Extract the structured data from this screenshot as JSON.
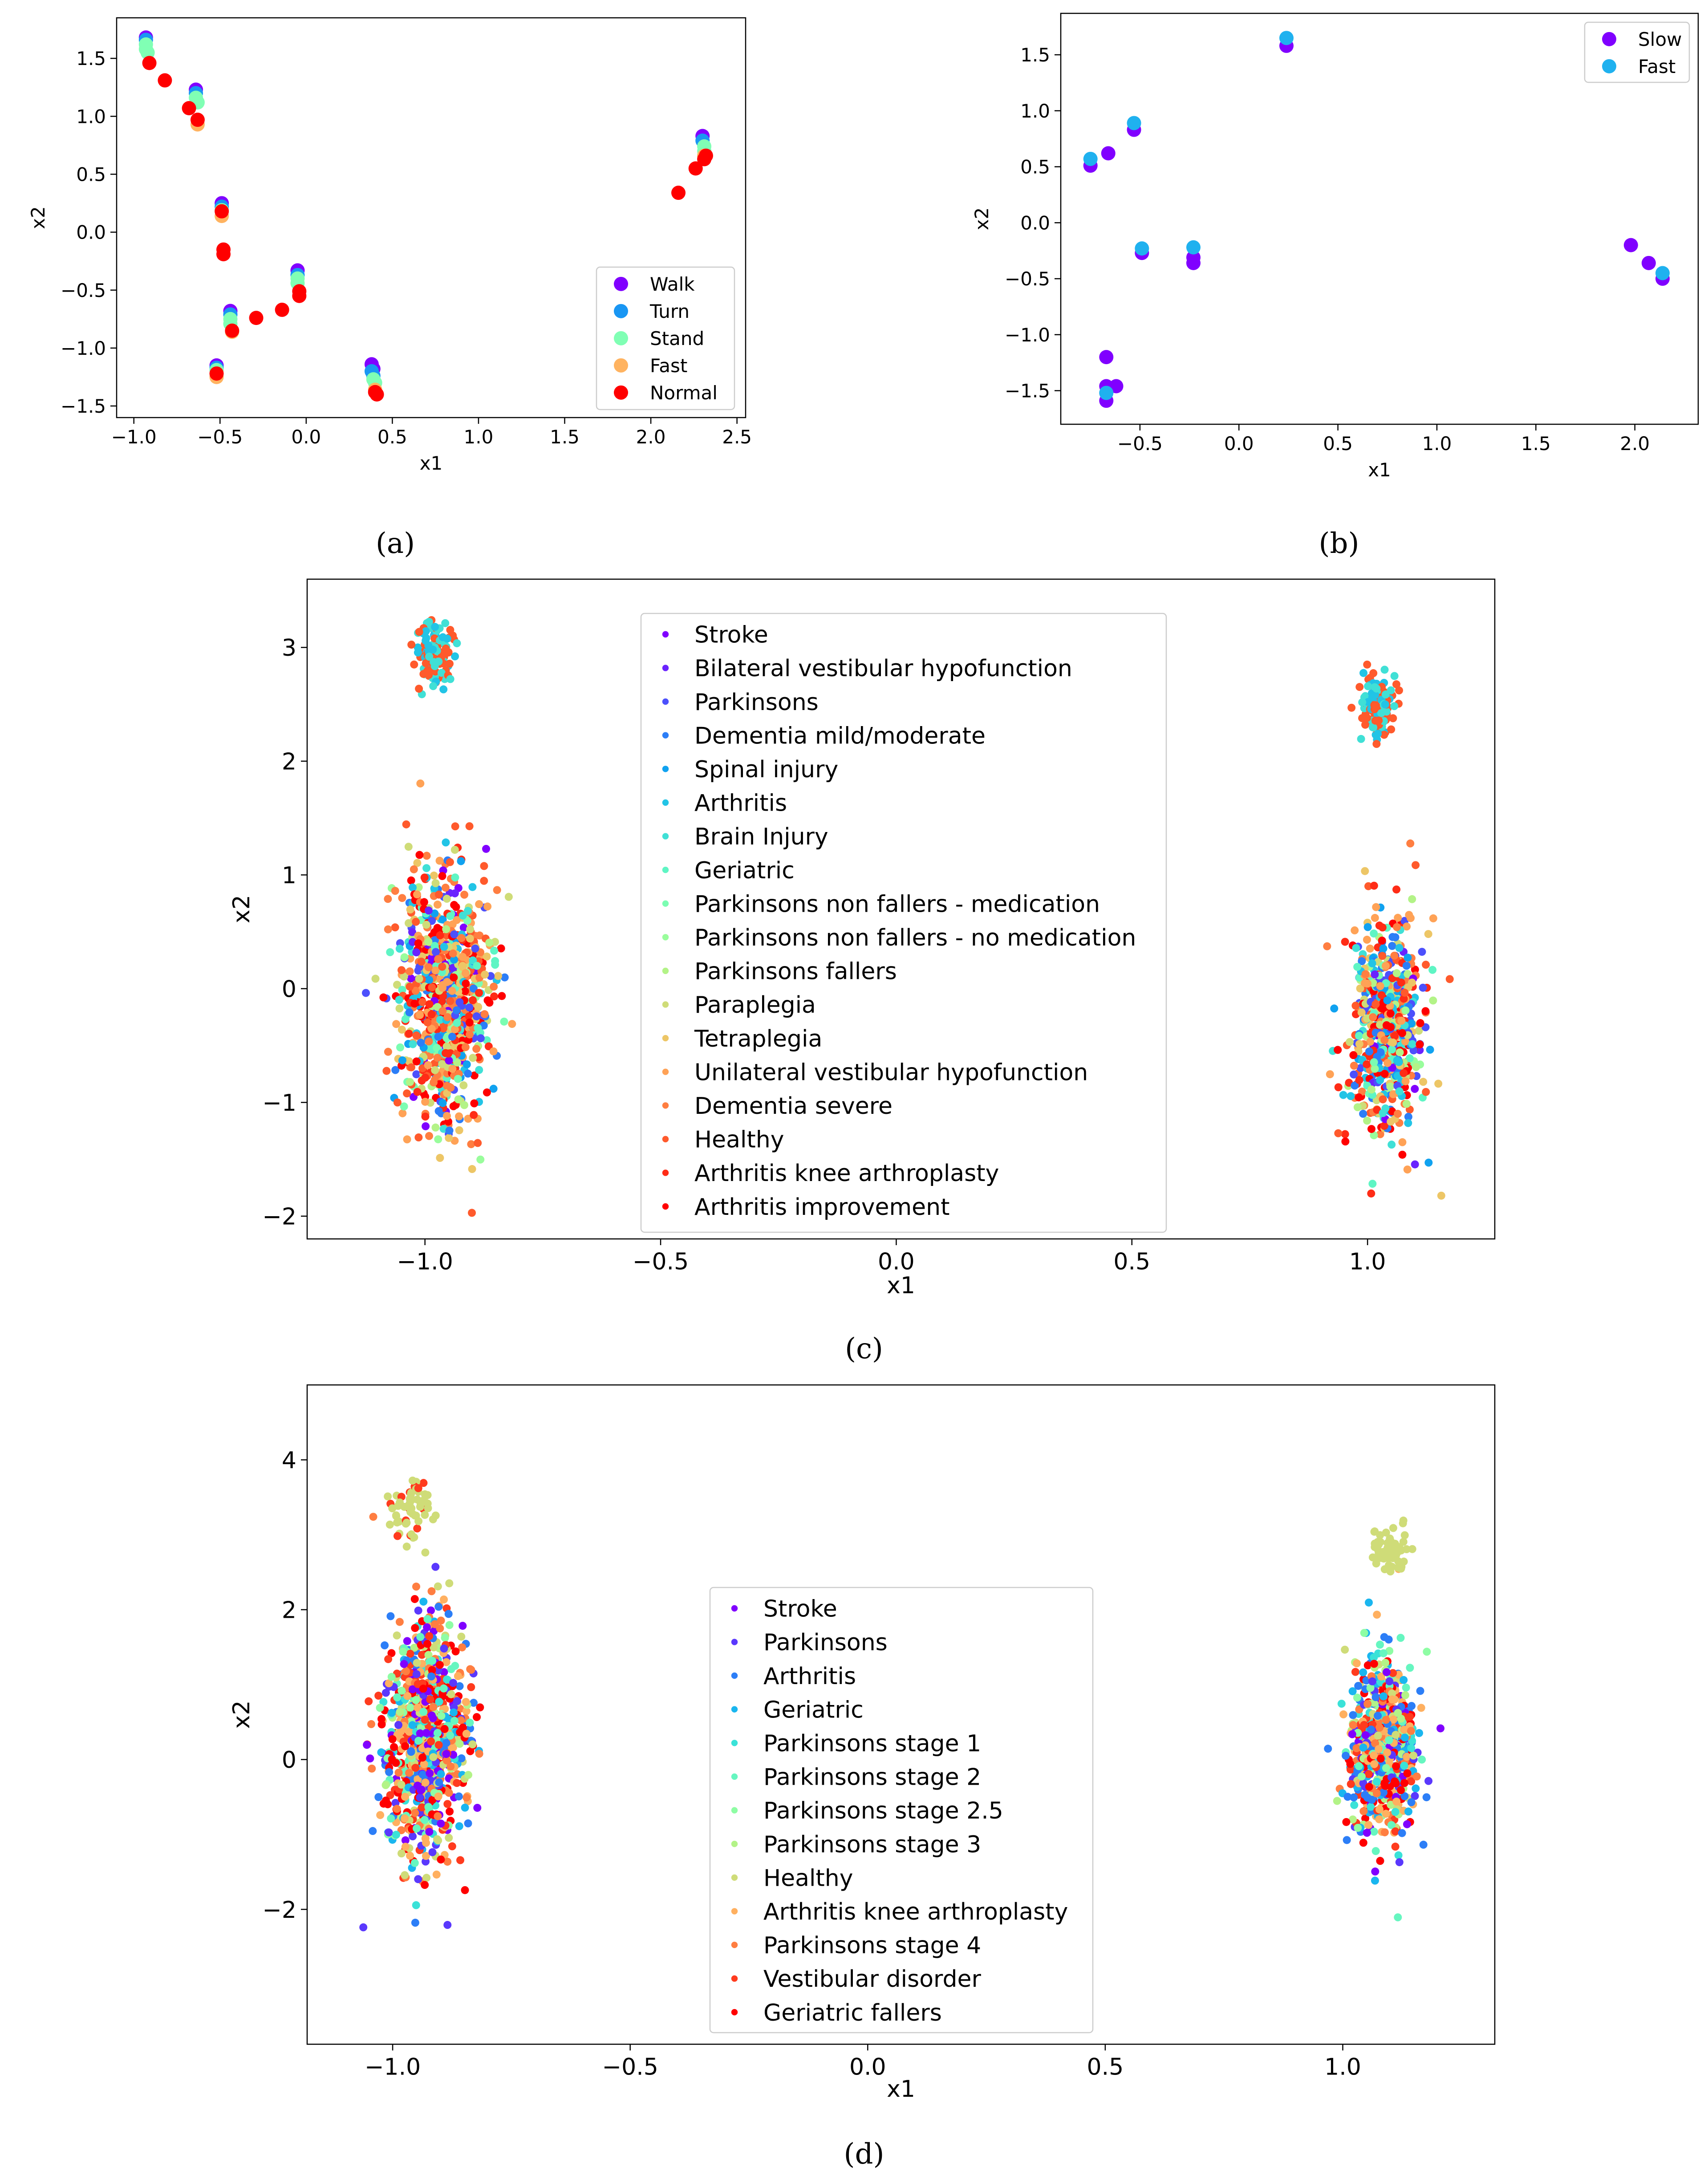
{
  "captions": [
    "(a)",
    "(b)",
    "(c)",
    "(d)"
  ],
  "chart_data": [
    {
      "type": "scatter",
      "panel": "(a)",
      "xlabel": "x1",
      "ylabel": "x2",
      "xlim": [
        -1.1,
        2.55
      ],
      "ylim": [
        -1.6,
        1.85
      ],
      "xticks": [
        -1.0,
        -0.5,
        0.0,
        0.5,
        1.0,
        1.5,
        2.0,
        2.5
      ],
      "xtick_labels": [
        "−1.0",
        "−0.5",
        "0.0",
        "0.5",
        "1.0",
        "1.5",
        "2.0",
        "2.5"
      ],
      "yticks": [
        -1.5,
        -1.0,
        -0.5,
        0.0,
        0.5,
        1.0,
        1.5
      ],
      "ytick_labels": [
        "−1.5",
        "−1.0",
        "−0.5",
        "0.0",
        "0.5",
        "1.0",
        "1.5"
      ],
      "legend_position": "lower-right",
      "series": [
        {
          "name": "Walk",
          "color": "#8000ff",
          "points": [
            [
              -0.93,
              1.68
            ],
            [
              -0.64,
              1.23
            ],
            [
              -0.49,
              0.25
            ],
            [
              -0.44,
              -0.68
            ],
            [
              -0.05,
              -0.33
            ],
            [
              0.38,
              -1.14
            ],
            [
              0.39,
              -1.18
            ],
            [
              2.3,
              0.83
            ],
            [
              -0.52,
              -1.15
            ]
          ]
        },
        {
          "name": "Turn",
          "color": "#1996f3",
          "points": [
            [
              -0.93,
              1.66
            ],
            [
              -0.64,
              1.2
            ],
            [
              -0.49,
              0.22
            ],
            [
              -0.44,
              -0.71
            ],
            [
              -0.05,
              -0.37
            ],
            [
              0.38,
              -1.2
            ],
            [
              0.39,
              -1.24
            ],
            [
              2.3,
              0.79
            ],
            [
              -0.52,
              -1.17
            ]
          ]
        },
        {
          "name": "Stand",
          "color": "#80ffb4",
          "points": [
            [
              -0.93,
              1.62
            ],
            [
              -0.93,
              1.58
            ],
            [
              -0.92,
              1.55
            ],
            [
              -0.64,
              1.16
            ],
            [
              -0.63,
              1.12
            ],
            [
              -0.49,
              0.19
            ],
            [
              -0.44,
              -0.75
            ],
            [
              -0.44,
              -0.79
            ],
            [
              -0.05,
              -0.4
            ],
            [
              -0.05,
              -0.44
            ],
            [
              0.39,
              -1.27
            ],
            [
              0.4,
              -1.3
            ],
            [
              2.31,
              0.74
            ],
            [
              2.31,
              0.7
            ],
            [
              -0.52,
              -1.19
            ]
          ]
        },
        {
          "name": "Fast",
          "color": "#ffb360",
          "points": [
            [
              -0.63,
              0.93
            ],
            [
              -0.49,
              0.14
            ],
            [
              -0.43,
              -0.86
            ],
            [
              -0.52,
              -1.25
            ],
            [
              0.4,
              -1.36
            ],
            [
              2.31,
              0.66
            ]
          ]
        },
        {
          "name": "Normal",
          "color": "#ff0000",
          "points": [
            [
              -0.91,
              1.46
            ],
            [
              -0.82,
              1.31
            ],
            [
              -0.68,
              1.07
            ],
            [
              -0.63,
              0.97
            ],
            [
              -0.49,
              0.18
            ],
            [
              -0.48,
              -0.15
            ],
            [
              -0.48,
              -0.19
            ],
            [
              -0.43,
              -0.85
            ],
            [
              -0.29,
              -0.74
            ],
            [
              -0.14,
              -0.67
            ],
            [
              -0.04,
              -0.51
            ],
            [
              -0.04,
              -0.55
            ],
            [
              0.4,
              -1.38
            ],
            [
              0.41,
              -1.4
            ],
            [
              -0.52,
              -1.22
            ],
            [
              2.16,
              0.34
            ],
            [
              2.26,
              0.55
            ],
            [
              2.31,
              0.63
            ],
            [
              2.32,
              0.66
            ]
          ]
        }
      ]
    },
    {
      "type": "scatter",
      "panel": "(b)",
      "xlabel": "x1",
      "ylabel": "x2",
      "xlim": [
        -0.9,
        2.32
      ],
      "ylim": [
        -1.8,
        1.87
      ],
      "xticks": [
        -0.5,
        0.0,
        0.5,
        1.0,
        1.5,
        2.0
      ],
      "xtick_labels": [
        "−0.5",
        "0.0",
        "0.5",
        "1.0",
        "1.5",
        "2.0"
      ],
      "yticks": [
        -1.5,
        -1.0,
        -0.5,
        0.0,
        0.5,
        1.0,
        1.5
      ],
      "ytick_labels": [
        "−1.5",
        "−1.0",
        "−0.5",
        "0.0",
        "0.5",
        "1.0",
        "1.5"
      ],
      "legend_position": "upper-right",
      "series": [
        {
          "name": "Slow",
          "color": "#8000ff",
          "points": [
            [
              -0.75,
              0.51
            ],
            [
              -0.66,
              0.62
            ],
            [
              -0.53,
              0.83
            ],
            [
              -0.49,
              -0.27
            ],
            [
              -0.23,
              -0.36
            ],
            [
              -0.23,
              -0.31
            ],
            [
              0.24,
              1.58
            ],
            [
              -0.67,
              -1.2
            ],
            [
              -0.67,
              -1.46
            ],
            [
              -0.62,
              -1.46
            ],
            [
              -0.67,
              -1.59
            ],
            [
              1.98,
              -0.2
            ],
            [
              2.07,
              -0.36
            ],
            [
              2.14,
              -0.5
            ]
          ]
        },
        {
          "name": "Fast",
          "color": "#1fb1ef",
          "points": [
            [
              -0.75,
              0.57
            ],
            [
              -0.53,
              0.89
            ],
            [
              -0.49,
              -0.23
            ],
            [
              -0.23,
              -0.22
            ],
            [
              0.24,
              1.65
            ],
            [
              -0.67,
              -1.52
            ],
            [
              2.14,
              -0.45
            ]
          ]
        }
      ]
    },
    {
      "type": "scatter",
      "panel": "(c)",
      "xlabel": "x1",
      "ylabel": "x2",
      "xlim": [
        -1.25,
        1.27
      ],
      "ylim": [
        -2.2,
        3.6
      ],
      "xticks": [
        -1.0,
        -0.5,
        0.0,
        0.5,
        1.0
      ],
      "xtick_labels": [
        "−1.0",
        "−0.5",
        "0.0",
        "0.5",
        "1.0"
      ],
      "yticks": [
        -2,
        -1,
        0,
        1,
        2,
        3
      ],
      "ytick_labels": [
        "−2",
        "−1",
        "0",
        "1",
        "2",
        "3"
      ],
      "legend_position": "upper-center",
      "legend_entries": [
        {
          "name": "Stroke",
          "color": "#8000ff"
        },
        {
          "name": "Bilateral vestibular hypofunction",
          "color": "#6a23fe"
        },
        {
          "name": "Parkinsons",
          "color": "#4c50fc"
        },
        {
          "name": "Dementia mild/moderate",
          "color": "#2c7ef7"
        },
        {
          "name": "Spinal injury",
          "color": "#10a2f0"
        },
        {
          "name": "Arthritis",
          "color": "#22c4e6"
        },
        {
          "name": "Brain Injury",
          "color": "#40e0d6"
        },
        {
          "name": "Geriatric",
          "color": "#5ff5c4"
        },
        {
          "name": "Parkinsons non fallers - medication",
          "color": "#7bfdb2"
        },
        {
          "name": "Parkinsons non fallers - no medication",
          "color": "#99fd9c"
        },
        {
          "name": "Parkinsons fallers",
          "color": "#b3f387"
        },
        {
          "name": "Paraplegia",
          "color": "#cfdc78"
        },
        {
          "name": "Tetraplegia",
          "color": "#edc666"
        },
        {
          "name": "Unilateral vestibular hypofunction",
          "color": "#ffa256"
        },
        {
          "name": "Dementia severe",
          "color": "#ff7e41"
        },
        {
          "name": "Healthy",
          "color": "#ff5a2c"
        },
        {
          "name": "Arthritis knee arthroplasty",
          "color": "#ff2c16"
        },
        {
          "name": "Arthritis improvement",
          "color": "#ff0000"
        }
      ],
      "clusters": [
        {
          "center": [
            -0.98,
            2.95
          ],
          "spread": [
            0.025,
            0.28
          ],
          "n": 120,
          "weights": [
            0,
            0,
            0,
            0,
            0,
            6,
            6,
            0,
            0,
            0,
            0,
            0,
            0,
            0,
            0,
            10,
            0,
            0
          ]
        },
        {
          "center": [
            -0.96,
            -0.1
          ],
          "spread": [
            0.06,
            1.0
          ],
          "n": 900,
          "weights": [
            1,
            1,
            2,
            3,
            2,
            2,
            1,
            2,
            1,
            1,
            2,
            3,
            3,
            4,
            6,
            4,
            3,
            4
          ]
        },
        {
          "center": [
            1.02,
            2.5
          ],
          "spread": [
            0.025,
            0.28
          ],
          "n": 120,
          "weights": [
            0,
            0,
            0,
            0,
            0,
            6,
            6,
            0,
            0,
            0,
            0,
            0,
            0,
            0,
            0,
            10,
            0,
            0
          ]
        },
        {
          "center": [
            1.04,
            -0.35
          ],
          "spread": [
            0.045,
            0.85
          ],
          "n": 650,
          "weights": [
            1,
            1,
            3,
            4,
            2,
            3,
            2,
            2,
            1,
            1,
            2,
            2,
            3,
            4,
            3,
            3,
            3,
            4
          ]
        }
      ]
    },
    {
      "type": "scatter",
      "panel": "(d)",
      "xlabel": "x1",
      "ylabel": "x2",
      "xlim": [
        -1.18,
        1.32
      ],
      "ylim": [
        -3.8,
        5.0
      ],
      "xticks": [
        -1.0,
        -0.5,
        0.0,
        0.5,
        1.0
      ],
      "xtick_labels": [
        "−1.0",
        "−0.5",
        "0.0",
        "0.5",
        "1.0"
      ],
      "yticks": [
        -2,
        0,
        2,
        4
      ],
      "ytick_labels": [
        "−2",
        "0",
        "2",
        "4"
      ],
      "legend_position": "lower-center",
      "legend_entries": [
        {
          "name": "Stroke",
          "color": "#8000ff"
        },
        {
          "name": "Parkinsons",
          "color": "#5a38fd"
        },
        {
          "name": "Arthritis",
          "color": "#2c7ef7"
        },
        {
          "name": "Geriatric",
          "color": "#1ab6ef"
        },
        {
          "name": "Parkinsons stage 1",
          "color": "#3ae2d8"
        },
        {
          "name": "Parkinsons stage 2",
          "color": "#66f6c0"
        },
        {
          "name": "Parkinsons stage 2.5",
          "color": "#8efda4"
        },
        {
          "name": "Parkinsons stage 3",
          "color": "#b3f387"
        },
        {
          "name": "Healthy",
          "color": "#cfdc78"
        },
        {
          "name": "Arthritis knee arthroplasty",
          "color": "#ffb060"
        },
        {
          "name": "Parkinsons stage 4",
          "color": "#ff7e41"
        },
        {
          "name": "Vestibular disorder",
          "color": "#ff3b1e"
        },
        {
          "name": "Geriatric fallers",
          "color": "#ff0000"
        }
      ],
      "clusters": [
        {
          "center": [
            -0.93,
            0.3
          ],
          "spread": [
            0.055,
            1.45
          ],
          "n": 1000,
          "weights": [
            3,
            3,
            3,
            2,
            2,
            2,
            2,
            2,
            3,
            4,
            4,
            4,
            5
          ]
        },
        {
          "center": [
            -0.96,
            3.3
          ],
          "spread": [
            0.03,
            0.45
          ],
          "n": 60,
          "weights": [
            0,
            0,
            0,
            0,
            0,
            0,
            0,
            0,
            8,
            0,
            0,
            2,
            0
          ]
        },
        {
          "center": [
            1.08,
            0.2
          ],
          "spread": [
            0.045,
            1.1
          ],
          "n": 700,
          "weights": [
            2,
            2,
            4,
            2,
            2,
            2,
            2,
            2,
            3,
            4,
            3,
            3,
            4
          ]
        },
        {
          "center": [
            1.1,
            2.8
          ],
          "spread": [
            0.03,
            0.3
          ],
          "n": 60,
          "weights": [
            0,
            0,
            0,
            0,
            0,
            0,
            0,
            0,
            10,
            0,
            0,
            0,
            0
          ]
        }
      ]
    }
  ]
}
